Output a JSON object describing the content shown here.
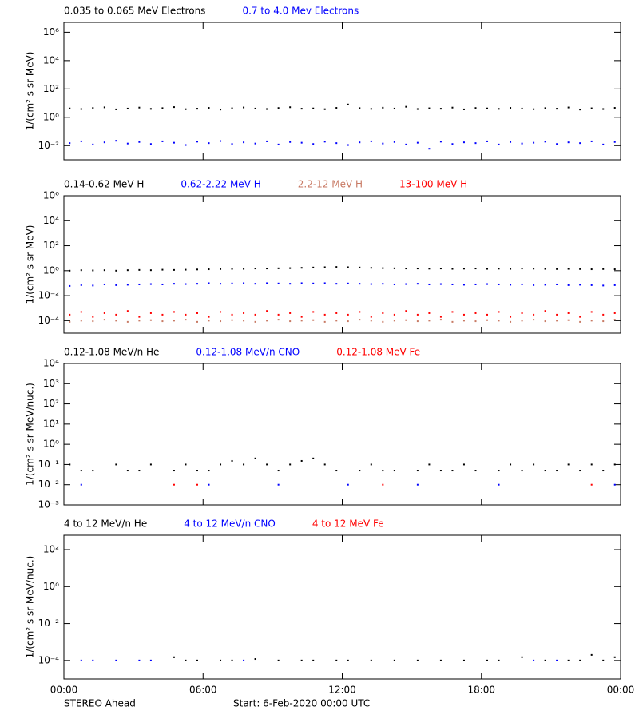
{
  "chart_data": [
    {
      "type": "scatter",
      "log_scale": true,
      "ylabel": "1/(cm² s sr MeV)",
      "ylim": [
        0.001,
        5000000
      ],
      "yticks": [
        {
          "value": 0.01,
          "label": "10⁻²"
        },
        {
          "value": 1,
          "label": "10⁰"
        },
        {
          "value": 100,
          "label": "10²"
        },
        {
          "value": 10000,
          "label": "10⁴"
        },
        {
          "value": 1000000,
          "label": "10⁶"
        }
      ],
      "x": [
        0.25,
        0.75,
        1.25,
        1.75,
        2.25,
        2.75,
        3.25,
        3.75,
        4.25,
        4.75,
        5.25,
        5.75,
        6.25,
        6.75,
        7.25,
        7.75,
        8.25,
        8.75,
        9.25,
        9.75,
        10.25,
        10.75,
        11.25,
        11.75,
        12.25,
        12.75,
        13.25,
        13.75,
        14.25,
        14.75,
        15.25,
        15.75,
        16.25,
        16.75,
        17.25,
        17.75,
        18.25,
        18.75,
        19.25,
        19.75,
        20.25,
        20.75,
        21.25,
        21.75,
        22.25,
        22.75,
        23.25,
        23.75
      ],
      "series": [
        {
          "name": "0.035 to 0.065 MeV Electrons",
          "color": "#000000",
          "values": [
            4.2,
            3.8,
            4.5,
            5.0,
            3.6,
            4.1,
            4.8,
            3.9,
            4.4,
            5.2,
            3.7,
            4.0,
            4.6,
            3.5,
            4.3,
            4.9,
            4.1,
            3.8,
            4.5,
            5.1,
            4.0,
            4.2,
            3.7,
            4.6,
            8.0,
            4.4,
            3.9,
            4.7,
            4.1,
            5.5,
            3.8,
            4.3,
            4.0,
            4.8,
            3.6,
            4.5,
            4.2,
            3.9,
            4.6,
            4.1,
            3.7,
            4.4,
            4.0,
            4.9,
            3.5,
            4.3,
            3.8,
            4.6
          ]
        },
        {
          "name": "0.7 to 4.0 Mev Electrons",
          "color": "#0000ff",
          "values": [
            0.015,
            0.02,
            0.012,
            0.017,
            0.022,
            0.014,
            0.018,
            0.013,
            0.02,
            0.016,
            0.011,
            0.019,
            0.015,
            0.021,
            0.013,
            0.017,
            0.014,
            0.02,
            0.012,
            0.018,
            0.016,
            0.013,
            0.019,
            0.015,
            0.011,
            0.017,
            0.02,
            0.014,
            0.018,
            0.012,
            0.016,
            0.006,
            0.019,
            0.013,
            0.017,
            0.015,
            0.02,
            0.012,
            0.018,
            0.014,
            0.016,
            0.019,
            0.013,
            0.017,
            0.015,
            0.02,
            0.012,
            0.018
          ]
        }
      ]
    },
    {
      "type": "scatter",
      "log_scale": true,
      "ylabel": "1/(cm² s sr MeV)",
      "ylim": [
        1e-05,
        1000000
      ],
      "yticks": [
        {
          "value": 0.0001,
          "label": "10⁻⁴"
        },
        {
          "value": 0.01,
          "label": "10⁻²"
        },
        {
          "value": 1,
          "label": "10⁰"
        },
        {
          "value": 100,
          "label": "10²"
        },
        {
          "value": 10000,
          "label": "10⁴"
        },
        {
          "value": 1000000,
          "label": "10⁶"
        }
      ],
      "x": [
        0.25,
        0.75,
        1.25,
        1.75,
        2.25,
        2.75,
        3.25,
        3.75,
        4.25,
        4.75,
        5.25,
        5.75,
        6.25,
        6.75,
        7.25,
        7.75,
        8.25,
        8.75,
        9.25,
        9.75,
        10.25,
        10.75,
        11.25,
        11.75,
        12.25,
        12.75,
        13.25,
        13.75,
        14.25,
        14.75,
        15.25,
        15.75,
        16.25,
        16.75,
        17.25,
        17.75,
        18.25,
        18.75,
        19.25,
        19.75,
        20.25,
        20.75,
        21.25,
        21.75,
        22.25,
        22.75,
        23.25,
        23.75
      ],
      "series": [
        {
          "name": "0.14-0.62 MeV H",
          "color": "#000000",
          "values": [
            1.0,
            1.1,
            1.05,
            1.1,
            1.0,
            1.1,
            1.15,
            1.1,
            1.2,
            1.15,
            1.2,
            1.25,
            1.3,
            1.35,
            1.4,
            1.4,
            1.5,
            1.5,
            1.55,
            1.6,
            1.7,
            1.8,
            1.9,
            2.0,
            1.9,
            1.8,
            1.7,
            1.6,
            1.55,
            1.5,
            1.5,
            1.45,
            1.5,
            1.4,
            1.45,
            1.5,
            1.4,
            1.45,
            1.4,
            1.5,
            1.45,
            1.4,
            1.35,
            1.4,
            1.35,
            1.3,
            1.35,
            1.3
          ]
        },
        {
          "name": "0.62-2.22 MeV H",
          "color": "#0000ff",
          "values": [
            0.06,
            0.07,
            0.065,
            0.08,
            0.07,
            0.075,
            0.08,
            0.085,
            0.08,
            0.09,
            0.085,
            0.09,
            0.1,
            0.09,
            0.095,
            0.1,
            0.09,
            0.1,
            0.095,
            0.09,
            0.1,
            0.095,
            0.1,
            0.09,
            0.095,
            0.09,
            0.085,
            0.09,
            0.08,
            0.085,
            0.09,
            0.08,
            0.085,
            0.08,
            0.075,
            0.08,
            0.085,
            0.08,
            0.075,
            0.08,
            0.07,
            0.075,
            0.08,
            0.07,
            0.075,
            0.07,
            0.065,
            0.07
          ]
        },
        {
          "name": "2.2-12 MeV H",
          "color": "#c87a64",
          "values": [
            8e-05,
            0.0001,
            9e-05,
            0.00012,
            0.0001,
            8e-05,
            0.0001,
            0.00011,
            9e-05,
            0.0001,
            0.00012,
            8e-05,
            0.0001,
            9e-05,
            0.00011,
            0.0001,
            8e-05,
            0.0001,
            0.00012,
            9e-05,
            0.0001,
            0.00011,
            8e-05,
            0.0001,
            9e-05,
            0.00012,
            0.0001,
            8e-05,
            0.0001,
            0.00011,
            9e-05,
            0.0001,
            0.00012,
            8e-05,
            0.0001,
            9e-05,
            0.00011,
            0.0001,
            8e-05,
            0.0001,
            0.00012,
            9e-05,
            0.0001,
            0.00011,
            8e-05,
            0.0001,
            9e-05,
            0.00012
          ]
        },
        {
          "name": "13-100 MeV H",
          "color": "#ff0000",
          "values": [
            0.0003,
            0.0005,
            0.0002,
            0.0004,
            0.0003,
            0.0006,
            0.0002,
            0.0004,
            0.0003,
            0.0005,
            0.0003,
            0.0004,
            0.0002,
            0.0005,
            0.0003,
            0.0004,
            0.0003,
            0.0006,
            0.0003,
            0.0004,
            0.0002,
            0.0005,
            0.0003,
            0.0004,
            0.0003,
            0.0005,
            0.0002,
            0.0004,
            0.0003,
            0.0006,
            0.0003,
            0.0004,
            0.0002,
            0.0005,
            0.0003,
            0.0004,
            0.0003,
            0.0005,
            0.0002,
            0.0004,
            0.0003,
            0.0006,
            0.0003,
            0.0004,
            0.0002,
            0.0005,
            0.0003,
            0.0004
          ]
        }
      ]
    },
    {
      "type": "scatter",
      "log_scale": true,
      "ylabel": "1/(cm² s sr MeV/nuc.)",
      "ylim": [
        0.001,
        10000
      ],
      "yticks": [
        {
          "value": 0.001,
          "label": "10⁻³"
        },
        {
          "value": 0.01,
          "label": "10⁻²"
        },
        {
          "value": 0.1,
          "label": "10⁻¹"
        },
        {
          "value": 1,
          "label": "10⁰"
        },
        {
          "value": 10,
          "label": "10¹"
        },
        {
          "value": 100,
          "label": "10²"
        },
        {
          "value": 1000,
          "label": "10³"
        },
        {
          "value": 10000,
          "label": "10⁴"
        }
      ],
      "x": [
        0.25,
        0.75,
        1.25,
        1.75,
        2.25,
        2.75,
        3.25,
        3.75,
        4.25,
        4.75,
        5.25,
        5.75,
        6.25,
        6.75,
        7.25,
        7.75,
        8.25,
        8.75,
        9.25,
        9.75,
        10.25,
        10.75,
        11.25,
        11.75,
        12.25,
        12.75,
        13.25,
        13.75,
        14.25,
        14.75,
        15.25,
        15.75,
        16.25,
        16.75,
        17.25,
        17.75,
        18.25,
        18.75,
        19.25,
        19.75,
        20.25,
        20.75,
        21.25,
        21.75,
        22.25,
        22.75,
        23.25,
        23.75
      ],
      "series": [
        {
          "name": "0.12-1.08 MeV/n He",
          "color": "#000000",
          "values": [
            0.1,
            0.05,
            0.05,
            null,
            0.1,
            0.05,
            0.05,
            0.1,
            null,
            0.05,
            0.1,
            0.05,
            0.05,
            0.1,
            0.15,
            0.1,
            0.2,
            0.1,
            0.05,
            0.1,
            0.15,
            0.2,
            0.1,
            0.05,
            null,
            0.05,
            0.1,
            0.05,
            0.05,
            null,
            0.05,
            0.1,
            0.05,
            0.05,
            0.1,
            0.05,
            null,
            0.05,
            0.1,
            0.05,
            0.1,
            0.05,
            0.05,
            0.1,
            0.05,
            0.1,
            0.05,
            0.1
          ]
        },
        {
          "name": "0.12-1.08 MeV/n CNO",
          "color": "#0000ff",
          "values": [
            null,
            0.01,
            null,
            null,
            null,
            null,
            null,
            null,
            null,
            null,
            null,
            null,
            0.01,
            null,
            null,
            null,
            null,
            null,
            0.01,
            null,
            null,
            null,
            null,
            null,
            0.01,
            null,
            null,
            null,
            null,
            null,
            0.01,
            null,
            null,
            null,
            null,
            null,
            null,
            0.01,
            null,
            null,
            null,
            null,
            null,
            null,
            null,
            null,
            null,
            0.01
          ]
        },
        {
          "name": "0.12-1.08 MeV Fe",
          "color": "#ff0000",
          "values": [
            null,
            null,
            null,
            null,
            null,
            null,
            null,
            null,
            null,
            0.01,
            null,
            0.01,
            null,
            null,
            null,
            null,
            null,
            null,
            null,
            null,
            null,
            null,
            null,
            null,
            null,
            null,
            null,
            0.01,
            null,
            null,
            null,
            null,
            null,
            null,
            null,
            null,
            null,
            null,
            null,
            null,
            null,
            null,
            null,
            null,
            null,
            0.01,
            null,
            null
          ]
        }
      ]
    },
    {
      "type": "scatter",
      "log_scale": true,
      "ylabel": "1/(cm² s sr MeV/nuc.)",
      "ylim": [
        1e-05,
        600
      ],
      "yticks": [
        {
          "value": 0.0001,
          "label": "10⁻⁴"
        },
        {
          "value": 0.01,
          "label": "10⁻²"
        },
        {
          "value": 1,
          "label": "10⁰"
        },
        {
          "value": 100,
          "label": "10²"
        }
      ],
      "xlim": [
        0,
        24
      ],
      "xticks": [
        {
          "value": 0,
          "label": "00:00"
        },
        {
          "value": 6,
          "label": "06:00"
        },
        {
          "value": 12,
          "label": "12:00"
        },
        {
          "value": 18,
          "label": "18:00"
        },
        {
          "value": 24,
          "label": "00:00"
        }
      ],
      "x": [
        0.25,
        0.75,
        1.25,
        1.75,
        2.25,
        2.75,
        3.25,
        3.75,
        4.25,
        4.75,
        5.25,
        5.75,
        6.25,
        6.75,
        7.25,
        7.75,
        8.25,
        8.75,
        9.25,
        9.75,
        10.25,
        10.75,
        11.25,
        11.75,
        12.25,
        12.75,
        13.25,
        13.75,
        14.25,
        14.75,
        15.25,
        15.75,
        16.25,
        16.75,
        17.25,
        17.75,
        18.25,
        18.75,
        19.25,
        19.75,
        20.25,
        20.75,
        21.25,
        21.75,
        22.25,
        22.75,
        23.25,
        23.75
      ],
      "series": [
        {
          "name": "4 to 12 MeV/n He",
          "color": "#000000",
          "values": [
            null,
            null,
            null,
            null,
            null,
            null,
            null,
            null,
            null,
            0.00015,
            0.0001,
            0.0001,
            null,
            0.0001,
            0.0001,
            null,
            0.00012,
            null,
            0.0001,
            null,
            0.0001,
            0.0001,
            null,
            0.0001,
            0.0001,
            null,
            0.0001,
            null,
            0.0001,
            null,
            0.0001,
            null,
            0.0001,
            null,
            0.0001,
            null,
            0.0001,
            0.0001,
            null,
            0.00015,
            null,
            0.0001,
            null,
            0.0001,
            0.0001,
            0.0002,
            0.0001,
            0.00015
          ]
        },
        {
          "name": "4 to 12 MeV/n CNO",
          "color": "#0000ff",
          "values": [
            null,
            0.0001,
            0.0001,
            null,
            0.0001,
            null,
            0.0001,
            0.0001,
            null,
            null,
            null,
            null,
            null,
            null,
            null,
            0.0001,
            null,
            null,
            null,
            null,
            null,
            null,
            null,
            null,
            null,
            null,
            null,
            null,
            null,
            null,
            null,
            null,
            null,
            null,
            null,
            null,
            null,
            null,
            null,
            null,
            0.0001,
            null,
            0.0001,
            null,
            null,
            null,
            null,
            null
          ]
        },
        {
          "name": "4 to 12 MeV Fe",
          "color": "#ff0000",
          "values": [
            null,
            null,
            null,
            null,
            null,
            null,
            null,
            null,
            null,
            null,
            null,
            null,
            null,
            null,
            null,
            null,
            null,
            null,
            null,
            null,
            null,
            null,
            null,
            null,
            null,
            null,
            null,
            null,
            null,
            null,
            null,
            null,
            null,
            null,
            null,
            null,
            null,
            null,
            null,
            null,
            null,
            null,
            null,
            null,
            null,
            null,
            null,
            null
          ]
        }
      ]
    }
  ],
  "footer": {
    "left": "STEREO Ahead",
    "right": "Start:  6-Feb-2020 00:00 UTC"
  }
}
